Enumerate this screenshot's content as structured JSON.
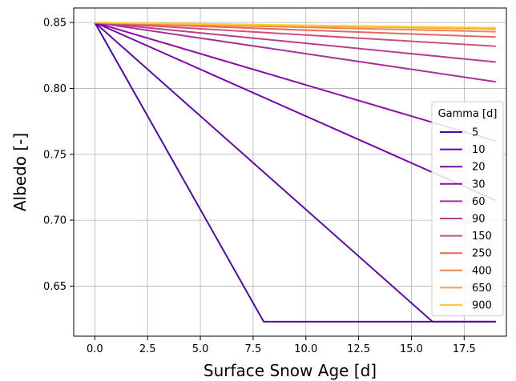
{
  "chart_data": {
    "type": "line",
    "title": "",
    "xlabel": "Surface Snow Age [d]",
    "ylabel": "Albedo [-]",
    "xlim": [
      -1,
      19.5
    ],
    "ylim": [
      0.612,
      0.861
    ],
    "xticks": [
      0.0,
      2.5,
      5.0,
      7.5,
      10.0,
      12.5,
      15.0,
      17.5
    ],
    "xtick_labels": [
      "0.0",
      "2.5",
      "5.0",
      "7.5",
      "10.0",
      "12.5",
      "15.0",
      "17.5"
    ],
    "yticks": [
      0.65,
      0.7,
      0.75,
      0.8,
      0.85
    ],
    "ytick_labels": [
      "0.65",
      "0.70",
      "0.75",
      "0.80",
      "0.85"
    ],
    "grid": true,
    "legend": {
      "title": "Gamma [d]",
      "placement": "center-right"
    },
    "series": [
      {
        "name": "5",
        "color": "#4a0c9a",
        "x": [
          0,
          8,
          19
        ],
        "y": [
          0.85,
          0.623,
          0.623
        ]
      },
      {
        "name": "10",
        "color": "#5c0aa4",
        "x": [
          0,
          16,
          19
        ],
        "y": [
          0.85,
          0.623,
          0.623
        ]
      },
      {
        "name": "20",
        "color": "#7509a6",
        "x": [
          0,
          19
        ],
        "y": [
          0.85,
          0.715
        ]
      },
      {
        "name": "30",
        "color": "#8c0ea5",
        "x": [
          0,
          19
        ],
        "y": [
          0.85,
          0.76
        ]
      },
      {
        "name": "60",
        "color": "#a8329a",
        "x": [
          0,
          19
        ],
        "y": [
          0.85,
          0.805
        ]
      },
      {
        "name": "90",
        "color": "#bb3e8a",
        "x": [
          0,
          19
        ],
        "y": [
          0.85,
          0.82
        ]
      },
      {
        "name": "150",
        "color": "#d24f78",
        "x": [
          0,
          19
        ],
        "y": [
          0.85,
          0.832
        ]
      },
      {
        "name": "250",
        "color": "#e5685f",
        "x": [
          0,
          19
        ],
        "y": [
          0.85,
          0.839
        ]
      },
      {
        "name": "400",
        "color": "#f2844b",
        "x": [
          0,
          19
        ],
        "y": [
          0.85,
          0.843
        ]
      },
      {
        "name": "650",
        "color": "#fba43b",
        "x": [
          0,
          19
        ],
        "y": [
          0.85,
          0.845
        ]
      },
      {
        "name": "900",
        "color": "#fcc93a",
        "x": [
          0,
          19
        ],
        "y": [
          0.85,
          0.846
        ]
      }
    ]
  }
}
